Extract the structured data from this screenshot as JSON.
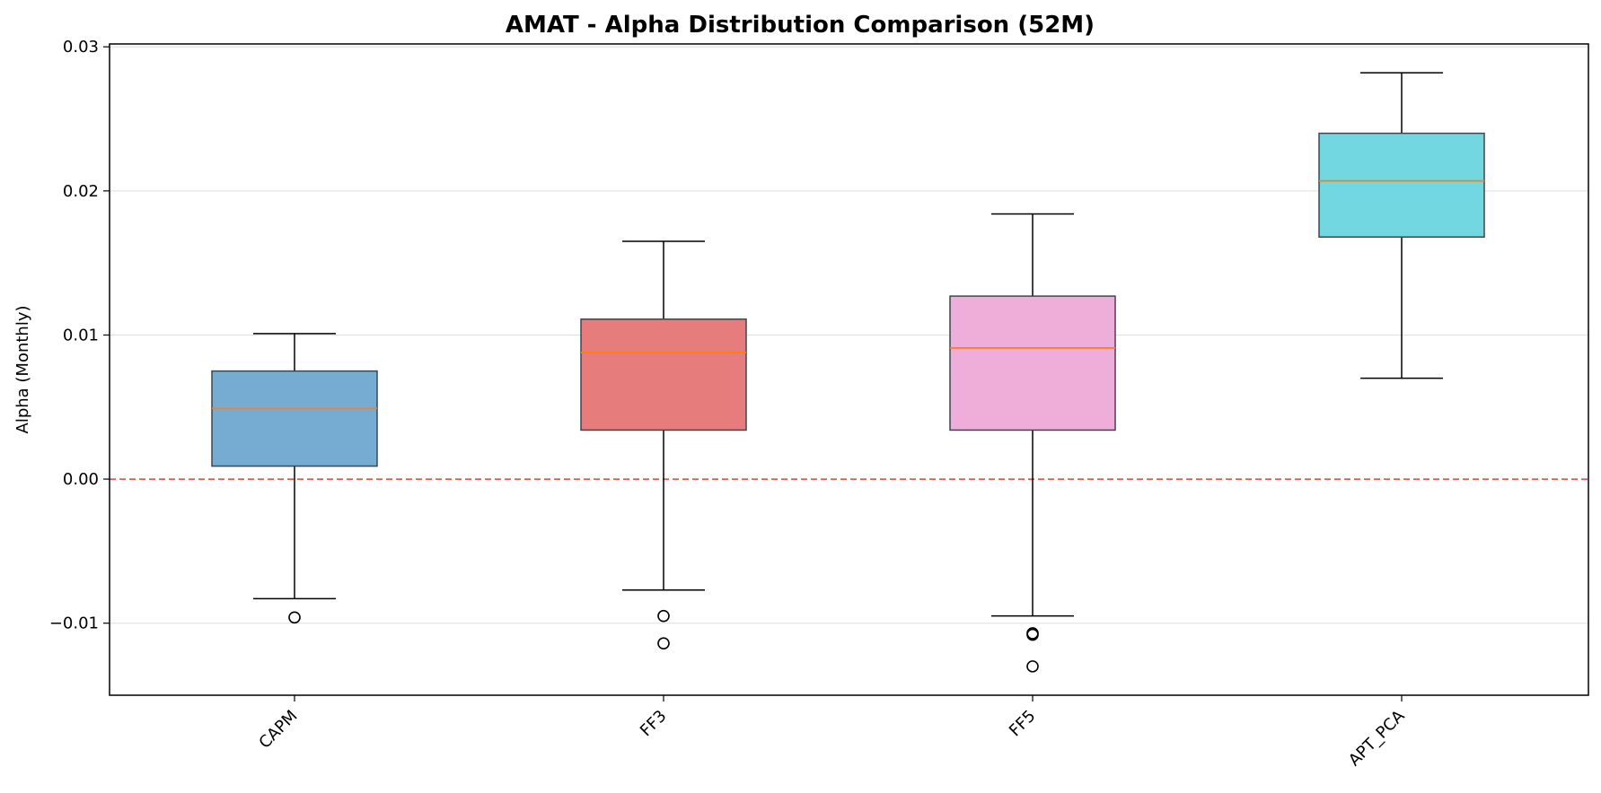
{
  "chart_data": {
    "type": "box",
    "title": "AMAT - Alpha Distribution Comparison (52M)",
    "xlabel": "",
    "ylabel": "Alpha (Monthly)",
    "ylim": [
      -0.015,
      0.0302
    ],
    "yticks": [
      -0.01,
      0.0,
      0.01,
      0.02,
      0.03
    ],
    "ytick_labels": [
      "−0.01",
      "0.00",
      "0.01",
      "0.02",
      "0.03"
    ],
    "grid": "y",
    "reference_line": {
      "y": 0.0,
      "style": "dashed",
      "color": "#e8413b"
    },
    "median_color": "#ff7f0e",
    "categories": [
      "CAPM",
      "FF3",
      "FF5",
      "APT_PCA"
    ],
    "boxes": [
      {
        "label": "CAPM",
        "whisker_low": -0.0083,
        "q1": 0.0009,
        "median": 0.0049,
        "q3": 0.0075,
        "whisker_high": 0.0101,
        "outliers": [
          -0.0096
        ],
        "color": "#76acd1"
      },
      {
        "label": "FF3",
        "whisker_low": -0.0077,
        "q1": 0.0034,
        "median": 0.0088,
        "q3": 0.0111,
        "whisker_high": 0.0165,
        "outliers": [
          -0.0095,
          -0.0114
        ],
        "color": "#e67c7c"
      },
      {
        "label": "FF5",
        "whisker_low": -0.0095,
        "q1": 0.0034,
        "median": 0.0091,
        "q3": 0.0127,
        "whisker_high": 0.0184,
        "outliers": [
          -0.0107,
          -0.0108,
          -0.013
        ],
        "color": "#efadda"
      },
      {
        "label": "APT_PCA",
        "whisker_low": 0.007,
        "q1": 0.0168,
        "median": 0.0207,
        "q3": 0.024,
        "whisker_high": 0.0282,
        "outliers": [],
        "color": "#72d7e1"
      }
    ]
  }
}
